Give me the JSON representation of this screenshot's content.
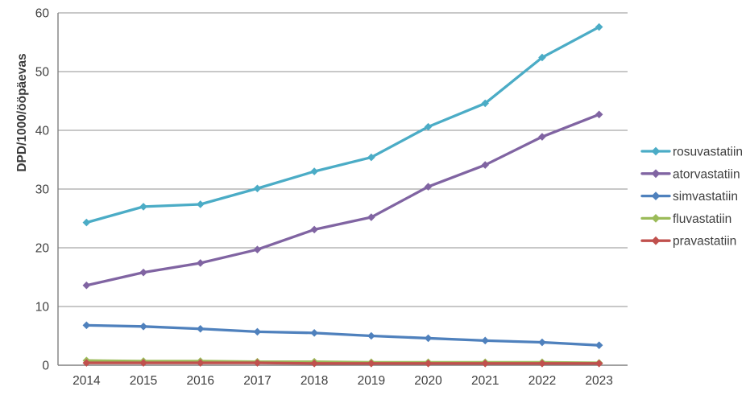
{
  "chart_data": {
    "type": "line",
    "title": "",
    "xlabel": "",
    "ylabel": "DPD/1000/ööpäevas",
    "categories": [
      "2014",
      "2015",
      "2016",
      "2017",
      "2018",
      "2019",
      "2020",
      "2021",
      "2022",
      "2023"
    ],
    "series": [
      {
        "name": "rosuvastatiin",
        "color": "#4BACC6",
        "values": [
          24.3,
          27.0,
          27.4,
          30.1,
          33.0,
          35.4,
          40.6,
          44.6,
          52.4,
          57.6
        ]
      },
      {
        "name": "atorvastatiin",
        "color": "#8064A2",
        "values": [
          13.6,
          15.8,
          17.4,
          19.7,
          23.1,
          25.2,
          30.4,
          34.1,
          38.9,
          42.7
        ]
      },
      {
        "name": "simvastatiin",
        "color": "#4F81BD",
        "values": [
          6.8,
          6.6,
          6.2,
          5.7,
          5.5,
          5.0,
          4.6,
          4.2,
          3.9,
          3.4
        ]
      },
      {
        "name": "fluvastatiin",
        "color": "#9BBB59",
        "values": [
          0.8,
          0.7,
          0.7,
          0.6,
          0.6,
          0.5,
          0.5,
          0.5,
          0.5,
          0.4
        ]
      },
      {
        "name": "pravastatiin",
        "color": "#C0504D",
        "values": [
          0.4,
          0.4,
          0.4,
          0.4,
          0.3,
          0.3,
          0.3,
          0.3,
          0.3,
          0.3
        ]
      }
    ],
    "ylim": [
      0,
      60
    ],
    "ytick_step": 10,
    "ytick_labels": [
      "0",
      "10",
      "20",
      "30",
      "40",
      "50",
      "60"
    ],
    "grid": "horizontal",
    "legend_position": "right",
    "marker": "diamond"
  },
  "style_colors": {
    "grid": "#a6a6a6",
    "axis": "#808080",
    "tick_text": "#3f3f3f",
    "background": "#ffffff"
  }
}
